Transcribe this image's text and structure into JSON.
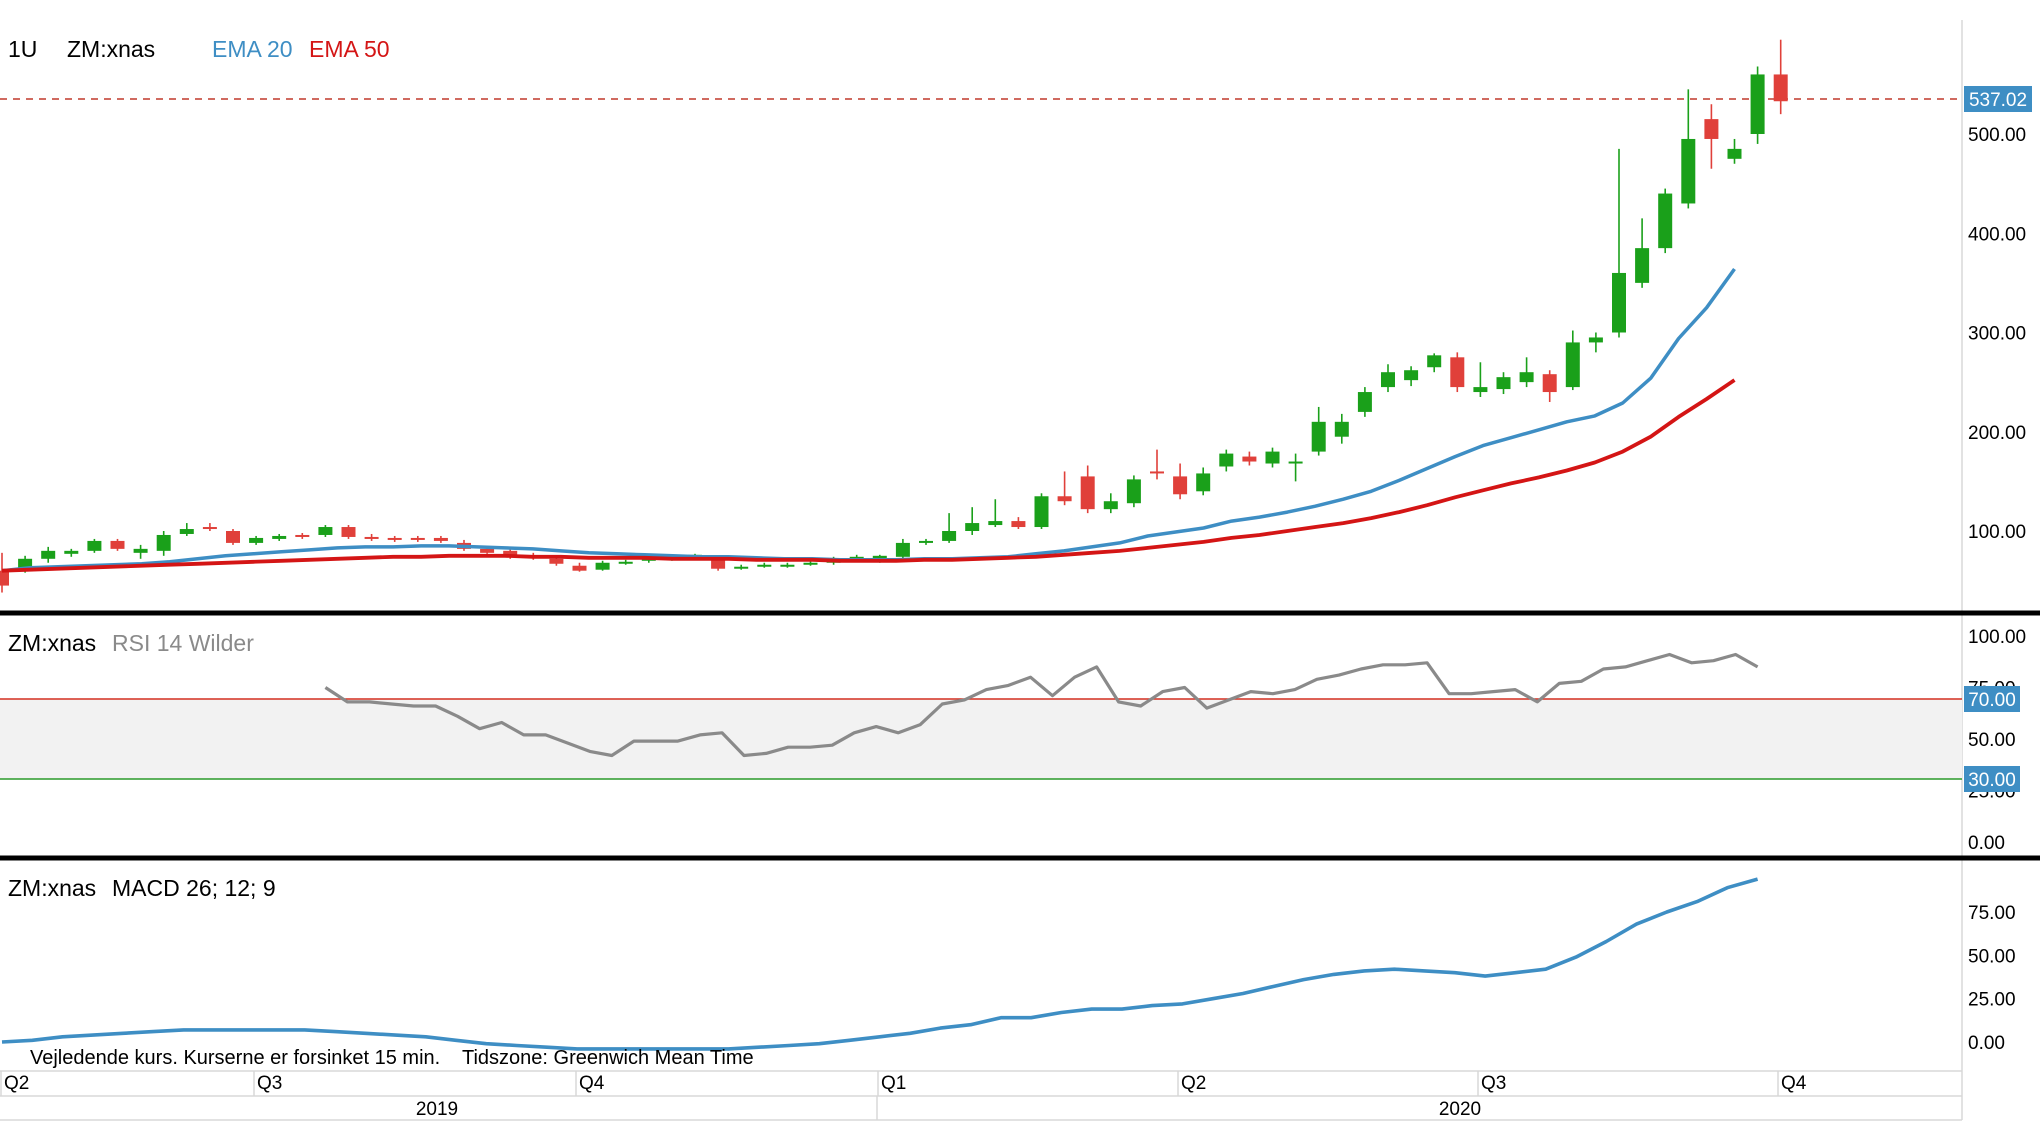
{
  "header": {
    "interval": "1U",
    "symbol": "ZM:xnas",
    "ema20_label": "EMA 20",
    "ema50_label": "EMA 50"
  },
  "rsi_header": {
    "symbol": "ZM:xnas",
    "label": "RSI 14 Wilder"
  },
  "macd_header": {
    "symbol": "ZM:xnas",
    "label": "MACD 26; 12; 9"
  },
  "footer": {
    "note": "Vejledende kurs. Kurserne er forsinket 15 min.",
    "timezone": "Tidszone: Greenwich Mean Time"
  },
  "colors": {
    "up": "#1aa01a",
    "down": "#e0403a",
    "ema20": "#3e8ec4",
    "ema50": "#d41515",
    "rsi": "#8a8a8a",
    "macd": "#3e8ec4",
    "badge": "#3e8ec4",
    "rsi_upper": "#d42f20",
    "rsi_lower": "#2a9a2a"
  },
  "chart_data": [
    {
      "type": "candlestick",
      "series": [
        {
          "name": "EMA 20",
          "values": [
            60,
            63,
            64,
            65,
            66,
            67,
            69,
            72,
            75,
            77,
            79,
            81,
            83,
            84,
            84,
            85,
            85,
            84,
            83,
            82,
            80,
            78,
            77,
            76,
            75,
            74,
            74,
            73,
            72,
            72,
            71,
            71,
            71,
            72,
            72,
            73,
            74,
            77,
            80,
            84,
            88,
            95,
            99,
            103,
            110,
            114,
            119,
            125,
            132,
            140,
            151,
            163,
            175,
            186,
            194,
            202,
            210,
            216,
            229,
            254,
            294,
            325,
            364
          ]
        },
        {
          "name": "EMA 50",
          "values": [
            60,
            61,
            62,
            63,
            64,
            65,
            66,
            67,
            68,
            69,
            70,
            71,
            72,
            73,
            74,
            74,
            75,
            75,
            75,
            74,
            74,
            73,
            73,
            73,
            72,
            72,
            72,
            71,
            71,
            71,
            70,
            70,
            70,
            71,
            71,
            72,
            73,
            74,
            76,
            78,
            80,
            83,
            86,
            89,
            93,
            96,
            100,
            104,
            108,
            113,
            119,
            126,
            134,
            141,
            148,
            154,
            161,
            169,
            180,
            195,
            215,
            233,
            252
          ]
        }
      ],
      "candles": [
        [
          60,
          45,
          78,
          38
        ],
        [
          61,
          72,
          75,
          58
        ],
        [
          72,
          80,
          84,
          68
        ],
        [
          77,
          80,
          82,
          74
        ],
        [
          80,
          90,
          92,
          78
        ],
        [
          90,
          82,
          92,
          80
        ],
        [
          78,
          82,
          86,
          72
        ],
        [
          80,
          96,
          100,
          75
        ],
        [
          97,
          102,
          108,
          95
        ],
        [
          104,
          102,
          108,
          100
        ],
        [
          100,
          88,
          102,
          86
        ],
        [
          88,
          93,
          95,
          86
        ],
        [
          92,
          95,
          97,
          90
        ],
        [
          96,
          94,
          98,
          92
        ],
        [
          96,
          104,
          106,
          94
        ],
        [
          104,
          94,
          106,
          92
        ],
        [
          94,
          92,
          97,
          90
        ],
        [
          93,
          91,
          95,
          89
        ],
        [
          93,
          91,
          95,
          89
        ],
        [
          93,
          90,
          95,
          88
        ],
        [
          88,
          82,
          91,
          80
        ],
        [
          82,
          78,
          85,
          77
        ],
        [
          80,
          74,
          83,
          72
        ],
        [
          75,
          73,
          78,
          71
        ],
        [
          72,
          67,
          75,
          65
        ],
        [
          65,
          60,
          68,
          59
        ],
        [
          61,
          68,
          70,
          60
        ],
        [
          68,
          69,
          71,
          66
        ],
        [
          70,
          72,
          73,
          68
        ],
        [
          72,
          74,
          75,
          70
        ],
        [
          74,
          76,
          77,
          72
        ],
        [
          74,
          62,
          75,
          60
        ],
        [
          62,
          64,
          66,
          61
        ],
        [
          64,
          66,
          68,
          63
        ],
        [
          64,
          66,
          68,
          63
        ],
        [
          66,
          68,
          70,
          65
        ],
        [
          68,
          72,
          74,
          66
        ],
        [
          72,
          74,
          76,
          70
        ],
        [
          70,
          75,
          76,
          68
        ],
        [
          74,
          88,
          92,
          72
        ],
        [
          88,
          90,
          92,
          86
        ],
        [
          90,
          100,
          118,
          88
        ],
        [
          100,
          108,
          124,
          96
        ],
        [
          106,
          110,
          132,
          104
        ],
        [
          110,
          104,
          114,
          102
        ],
        [
          104,
          135,
          138,
          102
        ],
        [
          135,
          130,
          160,
          126
        ],
        [
          155,
          122,
          166,
          118
        ],
        [
          122,
          130,
          138,
          118
        ],
        [
          128,
          152,
          156,
          124
        ],
        [
          160,
          158,
          182,
          152
        ],
        [
          155,
          137,
          168,
          132
        ],
        [
          140,
          158,
          164,
          136
        ],
        [
          165,
          178,
          182,
          160
        ],
        [
          175,
          170,
          180,
          166
        ],
        [
          168,
          180,
          184,
          164
        ],
        [
          170,
          170,
          178,
          150
        ],
        [
          180,
          210,
          225,
          176
        ],
        [
          195,
          210,
          218,
          188
        ],
        [
          220,
          240,
          245,
          215
        ],
        [
          245,
          260,
          268,
          240
        ],
        [
          252,
          262,
          266,
          246
        ],
        [
          265,
          277,
          279,
          260
        ],
        [
          275,
          245,
          280,
          240
        ],
        [
          240,
          245,
          270,
          235
        ],
        [
          243,
          255,
          260,
          238
        ],
        [
          250,
          260,
          275,
          245
        ],
        [
          258,
          240,
          262,
          230
        ],
        [
          245,
          290,
          302,
          242
        ],
        [
          290,
          295,
          300,
          280
        ],
        [
          300,
          360,
          485,
          295
        ],
        [
          350,
          385,
          415,
          345
        ],
        [
          385,
          440,
          445,
          380
        ],
        [
          430,
          495,
          545,
          425
        ],
        [
          515,
          495,
          530,
          465
        ],
        [
          475,
          485,
          495,
          470
        ],
        [
          500,
          560,
          568,
          490
        ],
        [
          560,
          533,
          595,
          520
        ]
      ],
      "last_price": "537.02",
      "yaxis_ticks": [
        "100.00",
        "200.00",
        "300.00",
        "400.00",
        "500.00"
      ],
      "ylim": [
        20,
        610
      ]
    },
    {
      "type": "line",
      "name": "RSI 14 Wilder",
      "x_start_index": 14,
      "values": [
        75,
        68,
        68,
        67,
        66,
        66,
        61,
        55,
        58,
        52,
        52,
        48,
        44,
        42,
        49,
        49,
        49,
        52,
        53,
        42,
        43,
        46,
        46,
        47,
        53,
        56,
        53,
        57,
        67,
        69,
        74,
        76,
        80,
        71,
        80,
        85,
        68,
        66,
        73,
        75,
        65,
        69,
        73,
        72,
        74,
        79,
        81,
        84,
        86,
        86,
        87,
        72,
        72,
        73,
        74,
        68,
        77,
        78,
        84,
        85,
        88,
        91,
        87,
        88,
        91,
        85
      ],
      "upper": "70.00",
      "lower": "30.00",
      "yaxis_ticks": [
        "0.00",
        "25.00",
        "50.00",
        "75.00",
        "100.00"
      ],
      "ylim": [
        0,
        100
      ]
    },
    {
      "type": "line",
      "name": "MACD 26; 12; 9",
      "values": [
        0,
        1,
        3,
        4,
        5,
        6,
        7,
        7,
        7,
        7,
        7,
        6,
        5,
        4,
        3,
        1,
        -1,
        -2,
        -3,
        -4,
        -4,
        -4,
        -4,
        -4,
        -4,
        -3,
        -2,
        -1,
        1,
        3,
        5,
        8,
        10,
        14,
        14,
        17,
        19,
        19,
        21,
        22,
        25,
        28,
        32,
        36,
        39,
        41,
        42,
        41,
        40,
        38,
        40,
        42,
        49,
        58,
        68,
        75,
        81,
        89,
        94
      ],
      "yaxis_ticks": [
        "0.00",
        "25.00",
        "50.00",
        "75.00"
      ],
      "ylim": [
        -12,
        100
      ]
    }
  ],
  "xaxis": {
    "quarters": [
      "Q2",
      "Q3",
      "Q4",
      "Q1",
      "Q2",
      "Q3",
      "Q4"
    ],
    "years": [
      "2019",
      "2020"
    ]
  }
}
